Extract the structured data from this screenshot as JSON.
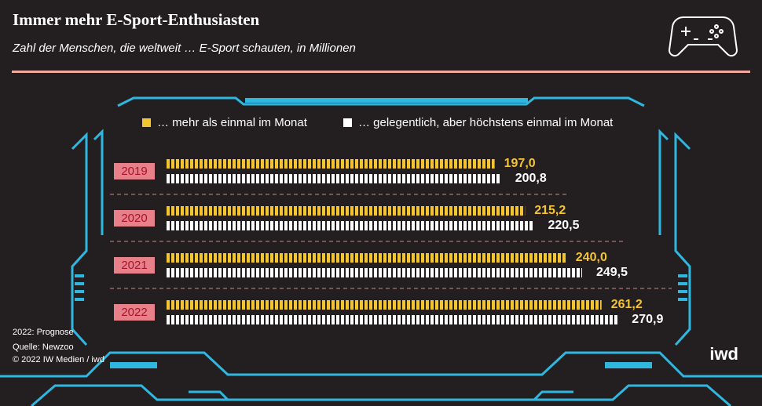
{
  "chart_data": {
    "type": "bar",
    "title": "Immer mehr E-Sport-Enthusiasten",
    "subtitle": "Zahl der Menschen, die weltweit … E-Sport schauten, in Millionen",
    "categories": [
      "2019",
      "2020",
      "2021",
      "2022"
    ],
    "series": [
      {
        "name": "… mehr als einmal im Monat",
        "color": "#f5c431",
        "values": [
          197.0,
          215.2,
          240.0,
          261.2
        ],
        "value_labels": [
          "197,0",
          "215,2",
          "240,0",
          "261,2"
        ]
      },
      {
        "name": "… gelegentlich, aber höchstens einmal im Monat",
        "color": "#ffffff",
        "values": [
          200.8,
          220.5,
          249.5,
          270.9
        ],
        "value_labels": [
          "200,8",
          "220,5",
          "249,5",
          "270,9"
        ]
      }
    ],
    "note": "2022: Prognose",
    "source": "Quelle: Newzoo",
    "copyright": "© 2022 IW Medien / iwd",
    "brand": "iwd"
  }
}
